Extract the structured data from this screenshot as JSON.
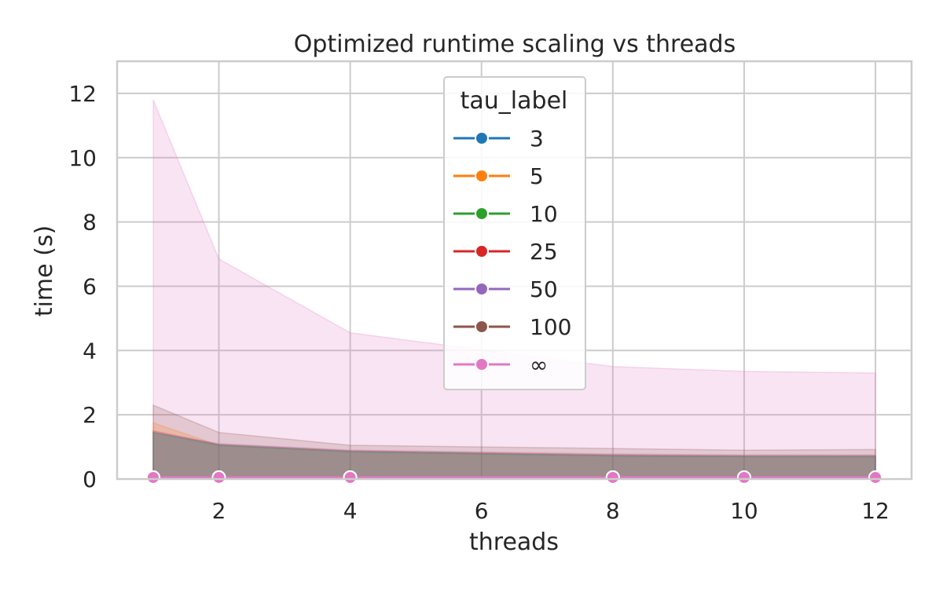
{
  "chart_data": {
    "type": "line",
    "title": "Optimized runtime scaling vs threads",
    "xlabel": "threads",
    "ylabel": "time (s)",
    "xlim": [
      0.45,
      12.55
    ],
    "ylim": [
      0,
      13
    ],
    "xticks": [
      2,
      4,
      6,
      8,
      10,
      12
    ],
    "yticks": [
      0,
      2,
      4,
      6,
      8,
      10,
      12
    ],
    "grid": true,
    "legend": {
      "title": "tau_label",
      "placement": "upper-center"
    },
    "x": [
      1,
      2,
      4,
      8,
      10,
      12
    ],
    "series": [
      {
        "name": "3",
        "color": "#1f77b4",
        "values": [
          0.05,
          0.05,
          0.05,
          0.05,
          0.05,
          0.05
        ],
        "band_upper": [
          1.45,
          1.05,
          0.85,
          0.72,
          0.7,
          0.7
        ],
        "band_lower": [
          0,
          0,
          0,
          0,
          0,
          0
        ]
      },
      {
        "name": "5",
        "color": "#ff7f0e",
        "values": [
          0.05,
          0.05,
          0.05,
          0.05,
          0.05,
          0.05
        ],
        "band_upper": [
          1.75,
          1.05,
          0.87,
          0.74,
          0.72,
          0.72
        ],
        "band_lower": [
          0,
          0,
          0,
          0,
          0,
          0
        ]
      },
      {
        "name": "10",
        "color": "#2ca02c",
        "values": [
          0.05,
          0.05,
          0.05,
          0.05,
          0.05,
          0.05
        ],
        "band_upper": [
          1.45,
          1.05,
          0.85,
          0.72,
          0.7,
          0.7
        ],
        "band_lower": [
          0,
          0,
          0,
          0,
          0,
          0
        ]
      },
      {
        "name": "25",
        "color": "#d62728",
        "values": [
          0.05,
          0.05,
          0.05,
          0.05,
          0.05,
          0.05
        ],
        "band_upper": [
          1.5,
          1.08,
          0.88,
          0.75,
          0.72,
          0.72
        ],
        "band_lower": [
          0,
          0,
          0,
          0,
          0,
          0
        ]
      },
      {
        "name": "50",
        "color": "#9467bd",
        "values": [
          0.05,
          0.05,
          0.05,
          0.05,
          0.05,
          0.05
        ],
        "band_upper": [
          1.45,
          1.1,
          0.9,
          0.78,
          0.75,
          0.75
        ],
        "band_lower": [
          0,
          0,
          0,
          0,
          0,
          0
        ]
      },
      {
        "name": "100",
        "color": "#8c564b",
        "values": [
          0.05,
          0.05,
          0.05,
          0.05,
          0.05,
          0.05
        ],
        "band_upper": [
          2.3,
          1.45,
          1.05,
          0.95,
          0.9,
          0.92
        ],
        "band_lower": [
          0,
          0,
          0,
          0,
          0,
          0
        ]
      },
      {
        "name": "∞",
        "color": "#e377c2",
        "values": [
          0.05,
          0.05,
          0.05,
          0.05,
          0.05,
          0.05
        ],
        "band_upper": [
          11.8,
          6.85,
          4.55,
          3.5,
          3.35,
          3.3
        ],
        "band_lower": [
          0,
          0,
          0,
          0,
          0,
          0
        ]
      }
    ]
  }
}
